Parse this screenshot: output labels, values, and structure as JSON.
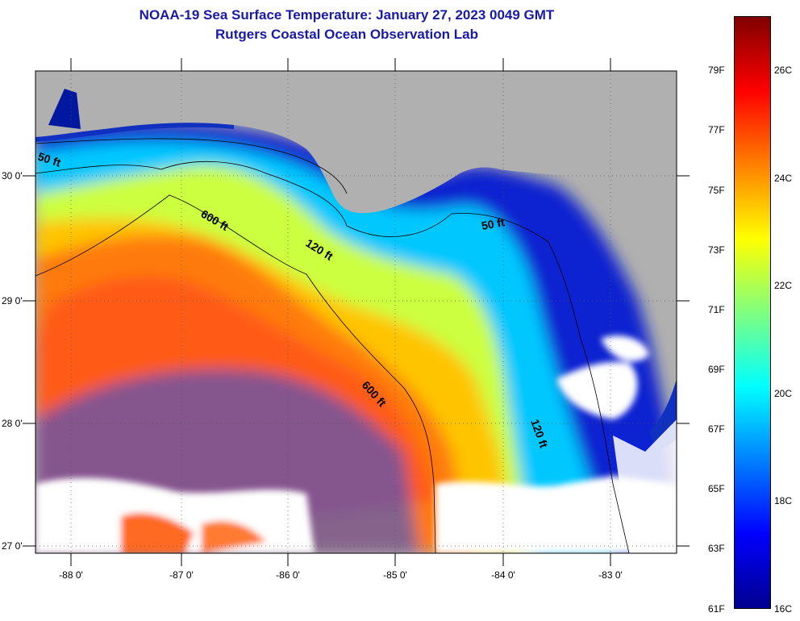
{
  "title_line1": "NOAA-19 Sea Surface Temperature:  January 27, 2023 0049 GMT",
  "title_line2": "Rutgers Coastal Ocean Observation Lab",
  "lat_labels": [
    "30 0'",
    "29 0'",
    "28 0'",
    "27 0'"
  ],
  "lon_labels": [
    "-88 0'",
    "-87 0'",
    "-86 0'",
    "-85 0'",
    "-84 0'",
    "-83 0'"
  ],
  "contours": [
    "50 ft",
    "600 ft",
    "120 ft",
    "600 ft",
    "50 ft",
    "120 ft"
  ],
  "colorbar": {
    "fahrenheit": [
      "79F",
      "77F",
      "75F",
      "73F",
      "71F",
      "69F",
      "67F",
      "65F",
      "63F",
      "61F"
    ],
    "celsius": [
      "26C",
      "24C",
      "22C",
      "20C",
      "18C",
      "16C"
    ],
    "colors": [
      "#00008f",
      "#0000ff",
      "#0080ff",
      "#00ffff",
      "#80ff80",
      "#ffff00",
      "#ff8000",
      "#ff0000",
      "#800000"
    ]
  },
  "colors": {
    "land": "#b0b0b0",
    "cloud": "#ffffff",
    "title": "#1a1aa8"
  }
}
